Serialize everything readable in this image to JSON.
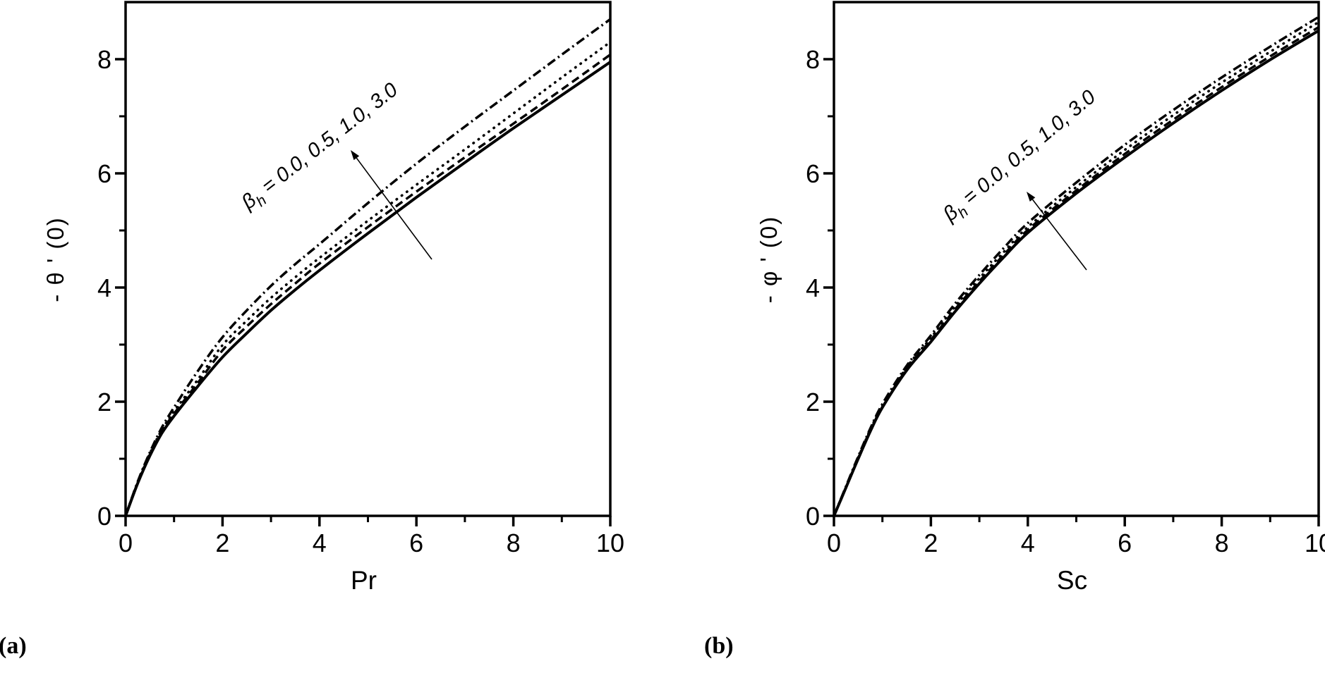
{
  "figure": {
    "background": "#ffffff",
    "ink_color": "#000000",
    "panel_labels": [
      "(a)",
      "(b)"
    ]
  },
  "chart_data": [
    {
      "type": "line",
      "panel": "a",
      "title": "",
      "xlabel": "Pr",
      "ylabel": "- θ ' (0)",
      "xlim": [
        0,
        10
      ],
      "ylim": [
        0,
        9
      ],
      "grid": false,
      "legend_position": "none",
      "x_major_ticks": [
        0,
        2,
        4,
        6,
        8,
        10
      ],
      "x_minor_ticks": [
        1,
        3,
        5,
        7,
        9
      ],
      "y_major_ticks": [
        0,
        2,
        4,
        6,
        8
      ],
      "y_minor_ticks": [
        1,
        3,
        5,
        7
      ],
      "annotation": {
        "symbol": "β",
        "subscript": "h",
        "rest": " = 0.0, 0.5, 1.0, 3.0"
      },
      "x": [
        0,
        0.25,
        0.5,
        0.75,
        1,
        1.5,
        2,
        2.5,
        3,
        3.5,
        4,
        5,
        6,
        7,
        8,
        9,
        10
      ],
      "series": [
        {
          "name": "βh = 0.0",
          "line_style": "solid",
          "values": [
            0,
            0.57,
            1.05,
            1.45,
            1.75,
            2.28,
            2.78,
            3.2,
            3.6,
            3.96,
            4.3,
            4.95,
            5.58,
            6.19,
            6.79,
            7.37,
            7.95
          ]
        },
        {
          "name": "βh = 0.5",
          "line_style": "dashed",
          "values": [
            0,
            0.58,
            1.07,
            1.48,
            1.79,
            2.34,
            2.9,
            3.32,
            3.71,
            4.07,
            4.42,
            5.06,
            5.68,
            6.28,
            6.87,
            7.47,
            8.08
          ]
        },
        {
          "name": "βh = 1.0",
          "line_style": "dotted",
          "values": [
            0,
            0.59,
            1.09,
            1.51,
            1.83,
            2.4,
            2.99,
            3.42,
            3.82,
            4.18,
            4.52,
            5.17,
            5.8,
            6.42,
            7.05,
            7.68,
            8.3
          ]
        },
        {
          "name": "βh = 3.0",
          "line_style": "dashdot",
          "values": [
            0,
            0.6,
            1.11,
            1.55,
            1.9,
            2.55,
            3.13,
            3.6,
            4.03,
            4.41,
            4.76,
            5.48,
            6.17,
            6.82,
            7.45,
            8.08,
            8.7
          ]
        }
      ]
    },
    {
      "type": "line",
      "panel": "b",
      "title": "",
      "xlabel": "Sc",
      "ylabel": "- φ ' (0)",
      "xlim": [
        0,
        10
      ],
      "ylim": [
        0,
        9
      ],
      "grid": false,
      "legend_position": "none",
      "x_major_ticks": [
        0,
        2,
        4,
        6,
        8,
        10
      ],
      "x_minor_ticks": [
        1,
        3,
        5,
        7,
        9
      ],
      "y_major_ticks": [
        0,
        2,
        4,
        6,
        8
      ],
      "y_minor_ticks": [
        1,
        3,
        5,
        7
      ],
      "annotation": {
        "symbol": "β",
        "subscript": "h",
        "rest": " = 0.0, 0.5, 1.0, 3.0"
      },
      "x": [
        0,
        0.25,
        0.5,
        0.75,
        1,
        1.5,
        2,
        2.5,
        3,
        3.5,
        4,
        5,
        6,
        7,
        8,
        9,
        10
      ],
      "series": [
        {
          "name": "βh = 0.0",
          "line_style": "solid",
          "values": [
            0,
            0.5,
            1.0,
            1.48,
            1.9,
            2.55,
            3.05,
            3.58,
            4.07,
            4.53,
            4.96,
            5.65,
            6.28,
            6.88,
            7.45,
            7.99,
            8.5
          ]
        },
        {
          "name": "βh = 0.5",
          "line_style": "dashed",
          "values": [
            0,
            0.5,
            1.01,
            1.49,
            1.91,
            2.57,
            3.08,
            3.62,
            4.11,
            4.57,
            5.01,
            5.7,
            6.34,
            6.94,
            7.51,
            8.05,
            8.56
          ]
        },
        {
          "name": "βh = 1.0",
          "line_style": "dotted",
          "values": [
            0,
            0.51,
            1.02,
            1.51,
            1.93,
            2.6,
            3.12,
            3.67,
            4.16,
            4.62,
            5.06,
            5.76,
            6.41,
            7.02,
            7.59,
            8.13,
            8.65
          ]
        },
        {
          "name": "βh = 3.0",
          "line_style": "dashdot",
          "values": [
            0,
            0.52,
            1.04,
            1.53,
            1.96,
            2.63,
            3.16,
            3.72,
            4.22,
            4.69,
            5.13,
            5.84,
            6.5,
            7.11,
            7.68,
            8.22,
            8.74
          ]
        }
      ]
    }
  ]
}
